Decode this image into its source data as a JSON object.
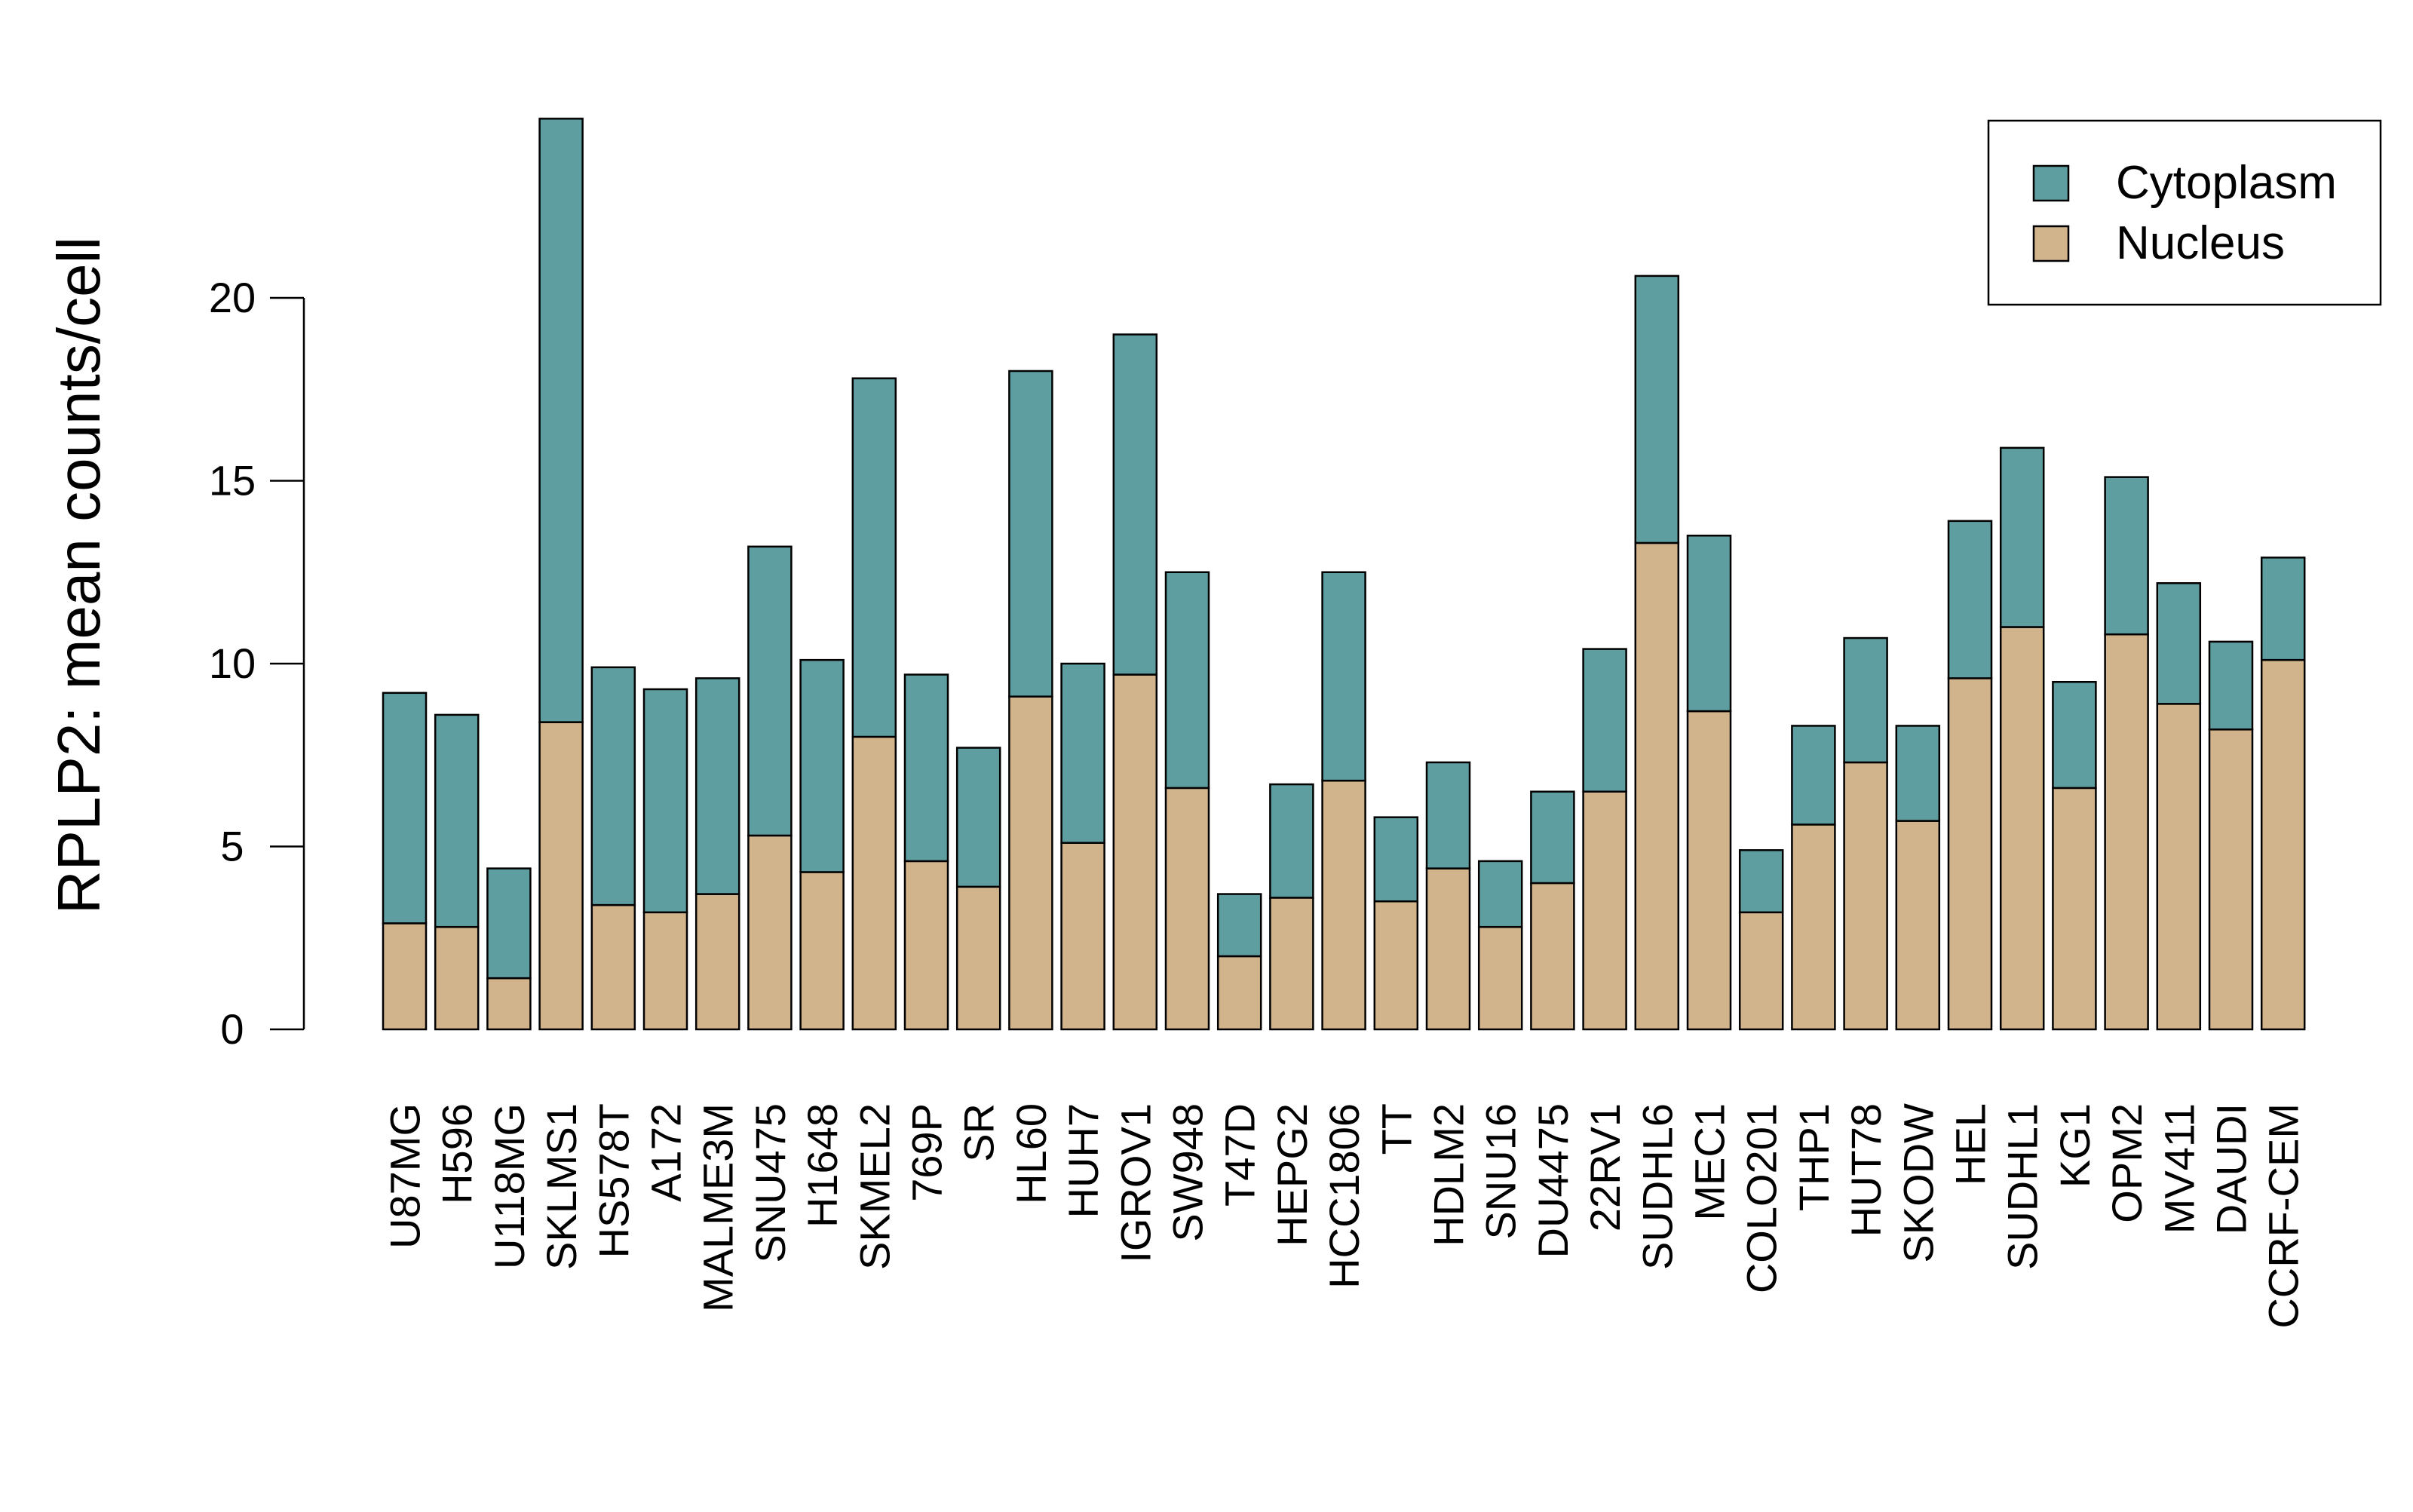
{
  "chart_data": {
    "type": "bar",
    "stacked": true,
    "ylabel": "RPLP2: mean counts/cell",
    "xlabel": "",
    "ylim": [
      0,
      25
    ],
    "yticks": [
      0,
      5,
      10,
      15,
      20
    ],
    "categories": [
      "U87MG",
      "H596",
      "U118MG",
      "SKLMS1",
      "HS578T",
      "A172",
      "MALME3M",
      "SNU475",
      "H1648",
      "SKMEL2",
      "769P",
      "SR",
      "HL60",
      "HUH7",
      "IGROV1",
      "SW948",
      "T47D",
      "HEPG2",
      "HCC1806",
      "TT",
      "HDLM2",
      "SNU16",
      "DU4475",
      "22RV1",
      "SUDHL6",
      "MEC1",
      "COLO201",
      "THP1",
      "HUT78",
      "SKODW",
      "HEL",
      "SUDHL1",
      "KG1",
      "OPM2",
      "MV411",
      "DAUDI",
      "CCRF-CEM"
    ],
    "series": [
      {
        "name": "Nucleus",
        "color": "#D2B48C",
        "values": [
          2.9,
          2.8,
          1.4,
          8.4,
          3.4,
          3.2,
          3.7,
          5.3,
          4.3,
          8.0,
          4.6,
          3.9,
          9.1,
          5.1,
          9.7,
          6.6,
          2.0,
          3.6,
          6.8,
          3.5,
          4.4,
          2.8,
          4.0,
          6.5,
          13.3,
          8.7,
          3.2,
          5.6,
          7.3,
          5.7,
          9.6,
          11.0,
          6.6,
          10.8,
          8.9,
          8.2,
          10.1
        ]
      },
      {
        "name": "Cytoplasm",
        "color": "#5F9EA0",
        "values": [
          6.3,
          5.8,
          3.0,
          16.5,
          6.5,
          6.1,
          5.9,
          7.9,
          5.8,
          9.8,
          5.1,
          3.8,
          8.9,
          4.9,
          9.3,
          5.9,
          1.7,
          3.1,
          5.7,
          2.3,
          2.9,
          1.8,
          2.5,
          3.9,
          7.3,
          4.8,
          1.7,
          2.7,
          3.4,
          2.6,
          4.3,
          4.9,
          2.9,
          4.3,
          3.3,
          2.4,
          2.8
        ]
      }
    ],
    "legend": {
      "position": "top-right",
      "entries": [
        {
          "label": "Cytoplasm",
          "color": "#5F9EA0"
        },
        {
          "label": "Nucleus",
          "color": "#D2B48C"
        }
      ]
    }
  }
}
